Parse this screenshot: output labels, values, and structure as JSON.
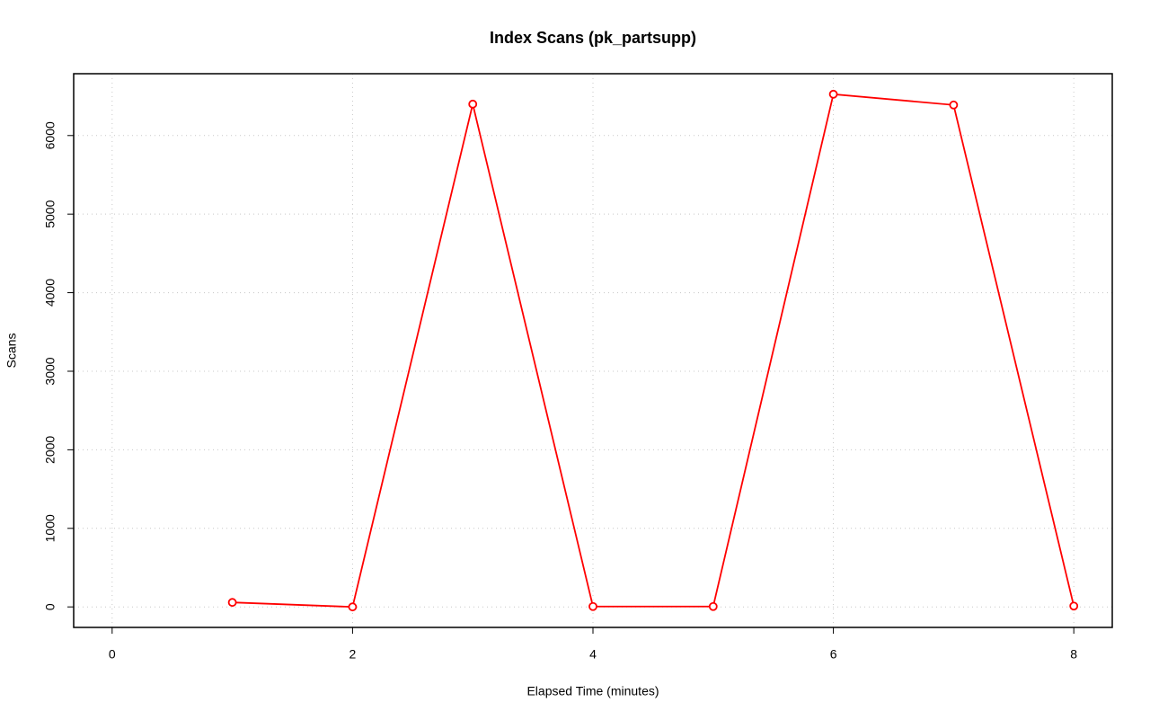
{
  "chart_data": {
    "type": "line",
    "title": "Index Scans (pk_partsupp)",
    "x_label": "Elapsed Time (minutes)",
    "y_label": "Scans",
    "x": [
      1,
      2,
      3,
      4,
      5,
      6,
      7,
      8
    ],
    "series": [
      {
        "name": "pk_partsupp",
        "color": "#ff0000",
        "values": [
          57,
          0,
          6400,
          5,
          5,
          6526,
          6389,
          11
        ]
      }
    ],
    "xlim": [
      -0.32,
      8.32
    ],
    "xticks": [
      0,
      2,
      4,
      6,
      8
    ],
    "ylim": [
      -261,
      6787
    ],
    "yticks": [
      0,
      1000,
      2000,
      3000,
      4000,
      5000,
      6000
    ],
    "grid": true
  }
}
